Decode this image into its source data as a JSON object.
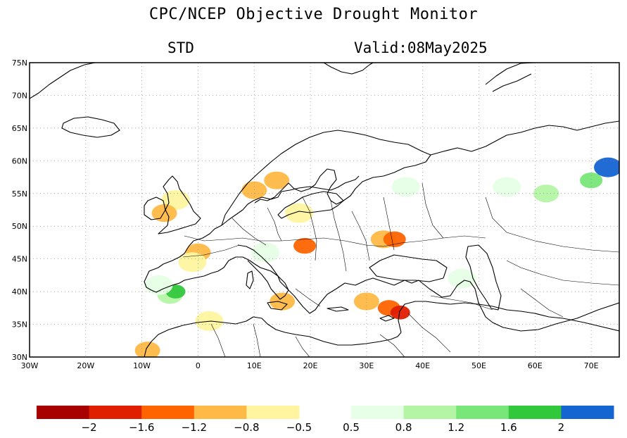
{
  "title": "CPC/NCEP Objective Drought Monitor",
  "subtitle_left": "STD",
  "subtitle_right": "Valid:08May2025",
  "map": {
    "lon_range": [
      -30,
      75
    ],
    "lat_range": [
      30,
      75
    ],
    "lat_labels": [
      "30N",
      "35N",
      "40N",
      "45N",
      "50N",
      "55N",
      "60N",
      "65N",
      "70N",
      "75N"
    ],
    "lat_values": [
      30,
      35,
      40,
      45,
      50,
      55,
      60,
      65,
      70,
      75
    ],
    "lon_labels": [
      "30W",
      "20W",
      "10W",
      "0",
      "10E",
      "20E",
      "30E",
      "40E",
      "50E",
      "60E",
      "70E"
    ],
    "lon_values": [
      -30,
      -20,
      -10,
      0,
      10,
      20,
      30,
      40,
      50,
      60,
      70
    ],
    "grid": true
  },
  "legend": {
    "dry_colors": [
      "#a80000",
      "#e01e00",
      "#ff6400",
      "#ffb946",
      "#fff5a0"
    ],
    "wet_colors": [
      "#e6ffe6",
      "#b4f5a5",
      "#78e678",
      "#32c83c",
      "#1464d2"
    ],
    "labels": [
      "−2",
      "−1.6",
      "−1.2",
      "−0.8",
      "−0.5",
      "0.5",
      "0.8",
      "1.2",
      "1.6",
      "2"
    ]
  },
  "anomalies": [
    {
      "region": "ireland-uk",
      "lon": -4,
      "lat": 54,
      "cls": -1
    },
    {
      "region": "ireland-uk",
      "lon": -6,
      "lat": 52,
      "cls": -2
    },
    {
      "region": "denmark",
      "lon": 10,
      "lat": 55.5,
      "cls": -2
    },
    {
      "region": "s-sweden",
      "lon": 14,
      "lat": 57,
      "cls": -2
    },
    {
      "region": "w-france",
      "lon": 0,
      "lat": 46,
      "cls": -2
    },
    {
      "region": "w-france",
      "lon": -1,
      "lat": 44.5,
      "cls": -1
    },
    {
      "region": "hungary",
      "lon": 19,
      "lat": 47,
      "cls": -3
    },
    {
      "region": "ukraine",
      "lon": 33,
      "lat": 48,
      "cls": -2
    },
    {
      "region": "ukraine",
      "lon": 35,
      "lat": 48,
      "cls": -3
    },
    {
      "region": "poland",
      "lon": 18,
      "lat": 52,
      "cls": -1
    },
    {
      "region": "turkey",
      "lon": 30,
      "lat": 38.5,
      "cls": -2
    },
    {
      "region": "turkey",
      "lon": 34,
      "lat": 37.5,
      "cls": -3
    },
    {
      "region": "turkey",
      "lon": 36,
      "lat": 36.8,
      "cls": -4
    },
    {
      "region": "italy",
      "lon": 15,
      "lat": 38.5,
      "cls": -2
    },
    {
      "region": "algeria",
      "lon": 2,
      "lat": 35.5,
      "cls": -1
    },
    {
      "region": "morocco",
      "lon": -9,
      "lat": 31,
      "cls": -2
    },
    {
      "region": "iberia",
      "lon": -5,
      "lat": 39.5,
      "cls": 2
    },
    {
      "region": "iberia",
      "lon": -4,
      "lat": 40,
      "cls": 4
    },
    {
      "region": "iberia",
      "lon": -7,
      "lat": 41,
      "cls": 1
    },
    {
      "region": "n-italy",
      "lon": 12,
      "lat": 46,
      "cls": 1
    },
    {
      "region": "russia",
      "lon": 55,
      "lat": 56,
      "cls": 1
    },
    {
      "region": "russia",
      "lon": 62,
      "lat": 55,
      "cls": 2
    },
    {
      "region": "russia",
      "lon": 70,
      "lat": 57,
      "cls": 3
    },
    {
      "region": "russia",
      "lon": 73,
      "lat": 59,
      "cls": 5
    },
    {
      "region": "baltic-russia",
      "lon": 37,
      "lat": 56,
      "cls": 1
    },
    {
      "region": "caucasus",
      "lon": 47,
      "lat": 42,
      "cls": 1
    }
  ]
}
